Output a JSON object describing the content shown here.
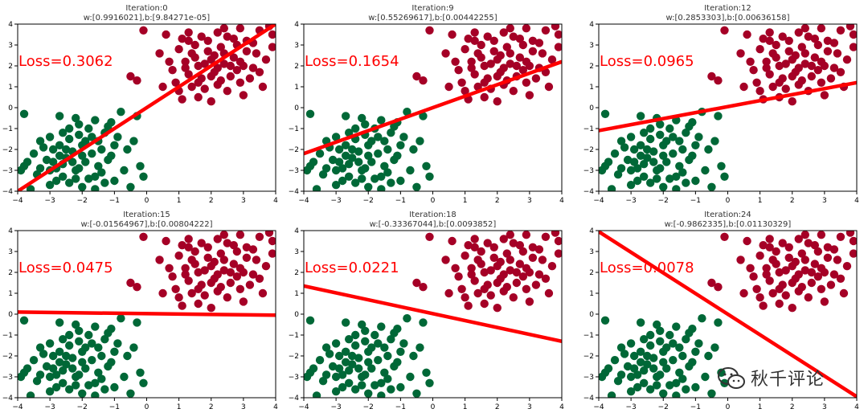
{
  "colors": {
    "class_a": "#a50026",
    "class_b": "#006837",
    "line": "#ff0000",
    "loss_text": "#ff0000",
    "axis": "#000000",
    "title": "#333333"
  },
  "watermark": {
    "text": "秋千评论",
    "icon": "wechat-icon"
  },
  "points": {
    "class_a": [
      [
        -0.1,
        3.7
      ],
      [
        0.6,
        3.5
      ],
      [
        1.1,
        3.3
      ],
      [
        1.3,
        3.2
      ],
      [
        1.5,
        3.0
      ],
      [
        2.2,
        3.6
      ],
      [
        2.5,
        3.4
      ],
      [
        2.9,
        3.8
      ],
      [
        3.5,
        3.7
      ],
      [
        3.9,
        3.5
      ],
      [
        1.0,
        2.8
      ],
      [
        1.4,
        2.6
      ],
      [
        1.9,
        2.7
      ],
      [
        2.3,
        2.9
      ],
      [
        2.8,
        3.0
      ],
      [
        3.1,
        3.2
      ],
      [
        3.4,
        2.6
      ],
      [
        3.7,
        2.3
      ],
      [
        3.9,
        2.9
      ],
      [
        1.2,
        2.2
      ],
      [
        1.6,
        2.0
      ],
      [
        2.0,
        2.3
      ],
      [
        2.4,
        2.1
      ],
      [
        2.7,
        2.4
      ],
      [
        3.0,
        2.0
      ],
      [
        3.3,
        1.9
      ],
      [
        0.8,
        1.8
      ],
      [
        1.3,
        1.6
      ],
      [
        1.7,
        1.4
      ],
      [
        2.1,
        1.7
      ],
      [
        2.6,
        1.5
      ],
      [
        2.9,
        1.2
      ],
      [
        3.2,
        1.4
      ],
      [
        3.6,
        1.0
      ],
      [
        0.9,
        1.2
      ],
      [
        1.4,
        1.0
      ],
      [
        1.8,
        0.9
      ],
      [
        2.2,
        1.1
      ],
      [
        2.5,
        0.8
      ],
      [
        3.0,
        0.6
      ],
      [
        0.4,
        2.6
      ],
      [
        -0.5,
        1.5
      ],
      [
        -0.3,
        1.3
      ],
      [
        1.1,
        0.4
      ],
      [
        1.6,
        0.5
      ],
      [
        2.0,
        0.3
      ],
      [
        2.4,
        2.6
      ],
      [
        1.9,
        3.2
      ],
      [
        2.6,
        2.0
      ],
      [
        3.5,
        1.7
      ],
      [
        1.5,
        2.4
      ],
      [
        2.1,
        2.5
      ],
      [
        0.7,
        2.2
      ],
      [
        2.8,
        1.8
      ],
      [
        2.3,
        1.3
      ],
      [
        1.2,
        1.9
      ],
      [
        3.1,
        2.7
      ],
      [
        1.7,
        3.4
      ],
      [
        2.0,
        1.5
      ],
      [
        2.7,
        3.3
      ],
      [
        1.0,
        0.8
      ],
      [
        1.6,
        1.2
      ],
      [
        3.3,
        3.1
      ],
      [
        2.4,
        3.8
      ],
      [
        1.3,
        3.6
      ],
      [
        3.8,
        3.9
      ],
      [
        0.5,
        1.0
      ],
      [
        2.9,
        2.2
      ],
      [
        1.8,
        2.1
      ],
      [
        2.2,
        1.9
      ]
    ],
    "class_b": [
      [
        -3.8,
        -0.3
      ],
      [
        -2.7,
        -0.4
      ],
      [
        -2.2,
        -0.5
      ],
      [
        -1.6,
        -0.6
      ],
      [
        -1.1,
        -0.7
      ],
      [
        -0.8,
        -0.2
      ],
      [
        -2.1,
        -0.8
      ],
      [
        -2.6,
        -1.2
      ],
      [
        -3.0,
        -1.4
      ],
      [
        -1.8,
        -1.0
      ],
      [
        -1.3,
        -1.2
      ],
      [
        -0.9,
        -1.4
      ],
      [
        -2.4,
        -1.5
      ],
      [
        -3.3,
        -1.6
      ],
      [
        -1.5,
        -1.6
      ],
      [
        -2.0,
        -1.8
      ],
      [
        -2.9,
        -2.0
      ],
      [
        -1.0,
        -1.8
      ],
      [
        -3.5,
        -2.2
      ],
      [
        -2.3,
        -2.1
      ],
      [
        -1.7,
        -2.2
      ],
      [
        -0.6,
        -2.0
      ],
      [
        -3.1,
        -2.5
      ],
      [
        -2.5,
        -2.4
      ],
      [
        -1.9,
        -2.6
      ],
      [
        -1.2,
        -2.5
      ],
      [
        -3.8,
        -2.8
      ],
      [
        -2.8,
        -2.9
      ],
      [
        -2.2,
        -3.0
      ],
      [
        -1.4,
        -3.1
      ],
      [
        -0.2,
        -2.8
      ],
      [
        -3.4,
        -3.2
      ],
      [
        -2.6,
        -3.3
      ],
      [
        -1.8,
        -3.4
      ],
      [
        -3.0,
        -3.7
      ],
      [
        -2.0,
        -3.8
      ],
      [
        -1.0,
        -3.5
      ],
      [
        -0.1,
        -3.3
      ],
      [
        -3.6,
        -3.9
      ],
      [
        -2.4,
        -3.6
      ],
      [
        -1.6,
        -3.9
      ],
      [
        -0.5,
        -3.8
      ],
      [
        -2.7,
        -1.8
      ],
      [
        -2.1,
        -1.3
      ],
      [
        -1.5,
        -2.8
      ],
      [
        -3.2,
        -1.9
      ],
      [
        -2.3,
        -2.6
      ],
      [
        -1.1,
        -2.3
      ],
      [
        -2.9,
        -2.6
      ],
      [
        -1.7,
        -1.4
      ],
      [
        -2.5,
        -2.0
      ],
      [
        -3.7,
        -2.6
      ],
      [
        -1.3,
        -3.6
      ],
      [
        -2.0,
        -2.3
      ],
      [
        -2.8,
        -3.5
      ],
      [
        -0.4,
        -1.6
      ],
      [
        -1.9,
        -1.6
      ],
      [
        -2.6,
        -2.7
      ],
      [
        -3.3,
        -2.9
      ],
      [
        -2.2,
        -3.4
      ],
      [
        -1.4,
        -2.0
      ],
      [
        -0.7,
        -3.0
      ],
      [
        -3.9,
        -3.0
      ],
      [
        -2.4,
        -1.0
      ],
      [
        -1.2,
        -0.9
      ],
      [
        -0.3,
        -0.4
      ],
      [
        -2.1,
        -2.9
      ],
      [
        -1.6,
        -3.3
      ],
      [
        -3.0,
        -3.0
      ],
      [
        -2.7,
        -2.3
      ]
    ]
  },
  "chart_data": [
    {
      "type": "scatter",
      "title": "Iteration:0",
      "subtitle": "w:[0.9916021],b:[9.84271e-05]",
      "annotation": "Loss=0.3062",
      "line": {
        "x": [
          -4,
          4
        ],
        "y": [
          -4.0,
          4.0
        ]
      },
      "xlim": [
        -4,
        4
      ],
      "ylim": [
        -4,
        4
      ],
      "xticks": [
        "−4",
        "−3",
        "−2",
        "−1",
        "0",
        "1",
        "2",
        "3",
        "4"
      ],
      "yticks": [
        "4",
        "3",
        "2",
        "1",
        "0",
        "−1",
        "−2",
        "−3",
        "−4"
      ]
    },
    {
      "type": "scatter",
      "title": "Iteration:9",
      "subtitle": "w:[0.55269617],b:[0.00442255]",
      "annotation": "Loss=0.1654",
      "line": {
        "x": [
          -4,
          4
        ],
        "y": [
          -2.2,
          2.2
        ]
      },
      "xlim": [
        -4,
        4
      ],
      "ylim": [
        -4,
        4
      ],
      "xticks": [
        "−4",
        "−3",
        "−2",
        "−1",
        "0",
        "1",
        "2",
        "3",
        "4"
      ],
      "yticks": [
        "4",
        "3",
        "2",
        "1",
        "0",
        "−1",
        "−2",
        "−3",
        "−4"
      ]
    },
    {
      "type": "scatter",
      "title": "Iteration:12",
      "subtitle": "w:[0.2853303],b:[0.00636158]",
      "annotation": "Loss=0.0965",
      "line": {
        "x": [
          -4,
          4
        ],
        "y": [
          -1.1,
          1.2
        ]
      },
      "xlim": [
        -4,
        4
      ],
      "ylim": [
        -4,
        4
      ],
      "xticks": [
        "−4",
        "−3",
        "−2",
        "−1",
        "0",
        "1",
        "2",
        "3",
        "4"
      ],
      "yticks": [
        "4",
        "3",
        "2",
        "1",
        "0",
        "−1",
        "−2",
        "−3",
        "−4"
      ]
    },
    {
      "type": "scatter",
      "title": "Iteration:15",
      "subtitle": "w:[-0.01564967],b:[0.00804222]",
      "annotation": "Loss=0.0475",
      "line": {
        "x": [
          -4,
          4
        ],
        "y": [
          0.1,
          -0.05
        ]
      },
      "xlim": [
        -4,
        4
      ],
      "ylim": [
        -4,
        4
      ],
      "xticks": [
        "−4",
        "−3",
        "−2",
        "−1",
        "0",
        "1",
        "2",
        "3",
        "4"
      ],
      "yticks": [
        "4",
        "3",
        "2",
        "1",
        "0",
        "−1",
        "−2",
        "−3",
        "−4"
      ]
    },
    {
      "type": "scatter",
      "title": "Iteration:18",
      "subtitle": "w:[-0.33367044],b:[0.0093852]",
      "annotation": "Loss=0.0221",
      "line": {
        "x": [
          -4,
          4
        ],
        "y": [
          1.35,
          -1.3
        ]
      },
      "xlim": [
        -4,
        4
      ],
      "ylim": [
        -4,
        4
      ],
      "xticks": [
        "−4",
        "−3",
        "−2",
        "−1",
        "0",
        "1",
        "2",
        "3",
        "4"
      ],
      "yticks": [
        "4",
        "3",
        "2",
        "1",
        "0",
        "−1",
        "−2",
        "−3",
        "−4"
      ]
    },
    {
      "type": "scatter",
      "title": "Iteration:24",
      "subtitle": "w:[-0.9862335],b:[0.01130329]",
      "annotation": "Loss=0.0078",
      "line": {
        "x": [
          -4,
          4
        ],
        "y": [
          3.95,
          -3.95
        ]
      },
      "xlim": [
        -4,
        4
      ],
      "ylim": [
        -4,
        4
      ],
      "xticks": [
        "−4",
        "−3",
        "−2",
        "−1",
        "0",
        "1",
        "2",
        "3",
        "4"
      ],
      "yticks": [
        "4",
        "3",
        "2",
        "1",
        "0",
        "−1",
        "−2",
        "−3",
        "−4"
      ]
    }
  ]
}
